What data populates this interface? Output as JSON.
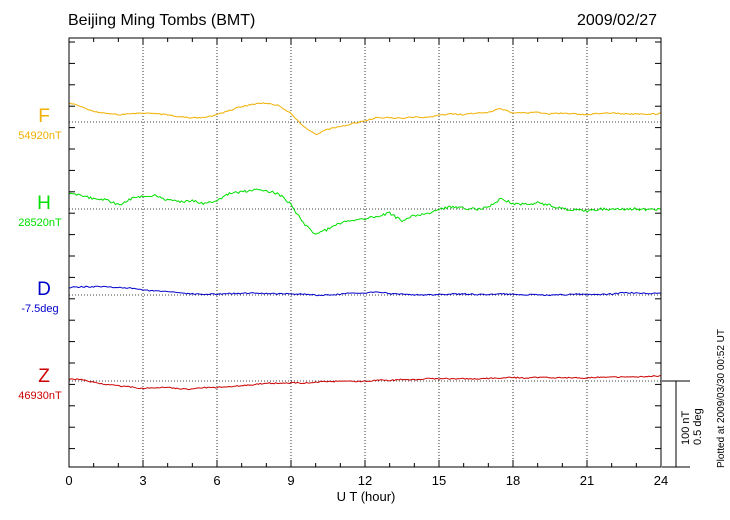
{
  "header": {
    "station": "Beijing Ming Tombs (BMT)",
    "date": "2009/02/27"
  },
  "footer_note": "Plotted at 2009/03/30 00:52 UT",
  "scale_bar": {
    "line1": "100 nT",
    "line2": "0.5 deg"
  },
  "colors": {
    "F": "#f0b000",
    "H": "#00e000",
    "D": "#0000cc",
    "Z": "#cc0000",
    "axis": "#000000",
    "grid": "#000000"
  },
  "chart_data": {
    "type": "line",
    "xlabel": "U T (hour)",
    "xlim": [
      0,
      24
    ],
    "xticks": [
      0,
      3,
      6,
      9,
      12,
      15,
      18,
      21,
      24
    ],
    "grid": true,
    "series": [
      {
        "name": "F",
        "baseline_label": "54920nT",
        "baseline": 54920,
        "unit": "nT",
        "x": [
          0,
          0.5,
          1,
          1.5,
          2,
          2.5,
          3,
          3.5,
          4,
          4.5,
          5,
          5.5,
          6,
          6.5,
          7,
          7.5,
          8,
          8.5,
          9,
          9.5,
          10,
          10.5,
          11,
          11.5,
          12,
          12.5,
          13,
          13.5,
          14,
          14.5,
          15,
          15.5,
          16,
          16.5,
          17,
          17.5,
          18,
          18.5,
          19,
          19.5,
          20,
          20.5,
          21,
          21.5,
          22,
          22.5,
          23,
          23.5,
          24
        ],
        "values": [
          54942,
          54938,
          54932,
          54930,
          54929,
          54930,
          54930,
          54930,
          54928,
          54926,
          54925,
          54926,
          54929,
          54933,
          54938,
          54941,
          54942,
          54939,
          54930,
          54915,
          54905,
          54912,
          54915,
          54918,
          54922,
          54925,
          54925,
          54924,
          54925,
          54925,
          54928,
          54929,
          54929,
          54930,
          54931,
          54935,
          54931,
          54930,
          54931,
          54930,
          54930,
          54929,
          54929,
          54930,
          54930,
          54930,
          54930,
          54929,
          54930
        ]
      },
      {
        "name": "H",
        "baseline_label": "28520nT",
        "baseline": 28520,
        "unit": "nT",
        "x": [
          0,
          0.5,
          1,
          1.5,
          2,
          2.5,
          3,
          3.5,
          4,
          4.5,
          5,
          5.5,
          6,
          6.5,
          7,
          7.5,
          8,
          8.5,
          9,
          9.5,
          10,
          10.5,
          11,
          11.5,
          12,
          12.5,
          13,
          13.5,
          14,
          14.5,
          15,
          15.5,
          16,
          16.5,
          17,
          17.5,
          18,
          18.5,
          19,
          19.5,
          20,
          20.5,
          21,
          21.5,
          22,
          22.5,
          23,
          23.5,
          24
        ],
        "values": [
          28539,
          28537,
          28531,
          28530,
          28524,
          28531,
          28535,
          28536,
          28531,
          28528,
          28530,
          28526,
          28530,
          28538,
          28540,
          28542,
          28542,
          28537,
          28525,
          28503,
          28490,
          28497,
          28503,
          28506,
          28508,
          28512,
          28515,
          28506,
          28513,
          28515,
          28520,
          28522,
          28521,
          28520,
          28522,
          28532,
          28527,
          28525,
          28528,
          28524,
          28520,
          28520,
          28518,
          28520,
          28520,
          28520,
          28520,
          28519,
          28520
        ]
      },
      {
        "name": "D",
        "baseline_label": "-7.5deg",
        "baseline": -7.5,
        "unit": "deg",
        "x": [
          0,
          0.5,
          1,
          1.5,
          2,
          2.5,
          3,
          3.5,
          4,
          4.5,
          5,
          5.5,
          6,
          6.5,
          7,
          7.5,
          8,
          8.5,
          9,
          9.5,
          10,
          10.5,
          11,
          11.5,
          12,
          12.5,
          13,
          13.5,
          14,
          14.5,
          15,
          15.5,
          16,
          16.5,
          17,
          17.5,
          18,
          18.5,
          19,
          19.5,
          20,
          20.5,
          21,
          21.5,
          22,
          22.5,
          23,
          23.5,
          24
        ],
        "values": [
          -7.453,
          -7.45,
          -7.455,
          -7.455,
          -7.457,
          -7.46,
          -7.47,
          -7.477,
          -7.483,
          -7.49,
          -7.493,
          -7.495,
          -7.495,
          -7.493,
          -7.49,
          -7.49,
          -7.49,
          -7.492,
          -7.495,
          -7.497,
          -7.5,
          -7.497,
          -7.493,
          -7.49,
          -7.485,
          -7.48,
          -7.49,
          -7.497,
          -7.497,
          -7.498,
          -7.497,
          -7.497,
          -7.497,
          -7.497,
          -7.498,
          -7.495,
          -7.493,
          -7.497,
          -7.498,
          -7.497,
          -7.497,
          -7.497,
          -7.497,
          -7.495,
          -7.493,
          -7.49,
          -7.49,
          -7.49,
          -7.487
        ]
      },
      {
        "name": "Z",
        "baseline_label": "46930nT",
        "baseline": 46930,
        "unit": "nT",
        "x": [
          0,
          0.5,
          1,
          1.5,
          2,
          2.5,
          3,
          3.5,
          4,
          4.5,
          5,
          5.5,
          6,
          6.5,
          7,
          7.5,
          8,
          8.5,
          9,
          9.5,
          10,
          10.5,
          11,
          11.5,
          12,
          12.5,
          13,
          13.5,
          14,
          14.5,
          15,
          15.5,
          16,
          16.5,
          17,
          17.5,
          18,
          18.5,
          19,
          19.5,
          20,
          20.5,
          21,
          21.5,
          22,
          22.5,
          23,
          23.5,
          24
        ],
        "values": [
          46933,
          46932,
          46928,
          46926,
          46924,
          46923,
          46922,
          46922,
          46922,
          46921,
          46921,
          46922,
          46922,
          46923,
          46925,
          46926,
          46927,
          46927,
          46928,
          46928,
          46928,
          46929,
          46929,
          46930,
          46930,
          46931,
          46931,
          46932,
          46932,
          46933,
          46933,
          46933,
          46933,
          46933,
          46933,
          46933,
          46934,
          46934,
          46934,
          46934,
          46934,
          46934,
          46934,
          46934,
          46935,
          46935,
          46935,
          46935,
          46936
        ]
      }
    ]
  }
}
